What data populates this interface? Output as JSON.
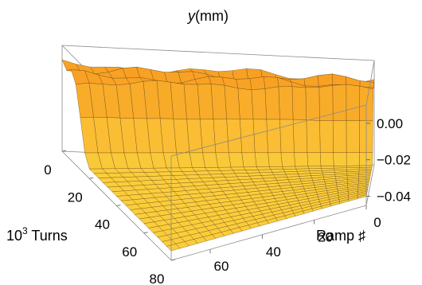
{
  "chart_data": {
    "type": "surface3d",
    "title": "",
    "zlabel_var": "y",
    "zlabel_unit": "(mm)",
    "xlabel_mantissa": "10",
    "xlabel_exp": "3",
    "xlabel_text": " Turns",
    "ylabel": "Ramp ♯",
    "x_axis": {
      "label": "10^3 Turns",
      "range": [
        0,
        80
      ],
      "ticks": [
        "0",
        "20",
        "40",
        "60",
        "80"
      ]
    },
    "y_axis": {
      "label": "Ramp ♯",
      "range": [
        0,
        75
      ],
      "ticks": [
        "0",
        "20",
        "40",
        "60"
      ]
    },
    "z_axis": {
      "label": "y(mm)",
      "range": [
        -0.045,
        0.01
      ],
      "ticks": [
        "0.00",
        "−0.02",
        "−0.04"
      ]
    },
    "surface": {
      "description_values": {
        "plateau_level": 0.0,
        "plateau_noise_amplitude": 0.003,
        "drop_start_turns": 10,
        "drop_end_turns": 20,
        "final_level": -0.04
      },
      "turns_samples": [
        0,
        5,
        10,
        12,
        14,
        16,
        18,
        20,
        25,
        30,
        40,
        50,
        60,
        70,
        80
      ],
      "y_profile": [
        0.0,
        0.0,
        -0.002,
        -0.01,
        -0.022,
        -0.032,
        -0.038,
        -0.04,
        -0.04,
        -0.04,
        -0.04,
        -0.04,
        -0.04,
        -0.04,
        -0.04
      ]
    },
    "colors": {
      "surface_high": "#f7a21f",
      "surface_low": "#fbd23e",
      "mesh": "#5a3a10",
      "box": "#8a8a8a"
    },
    "grid": false,
    "legend": "none"
  }
}
